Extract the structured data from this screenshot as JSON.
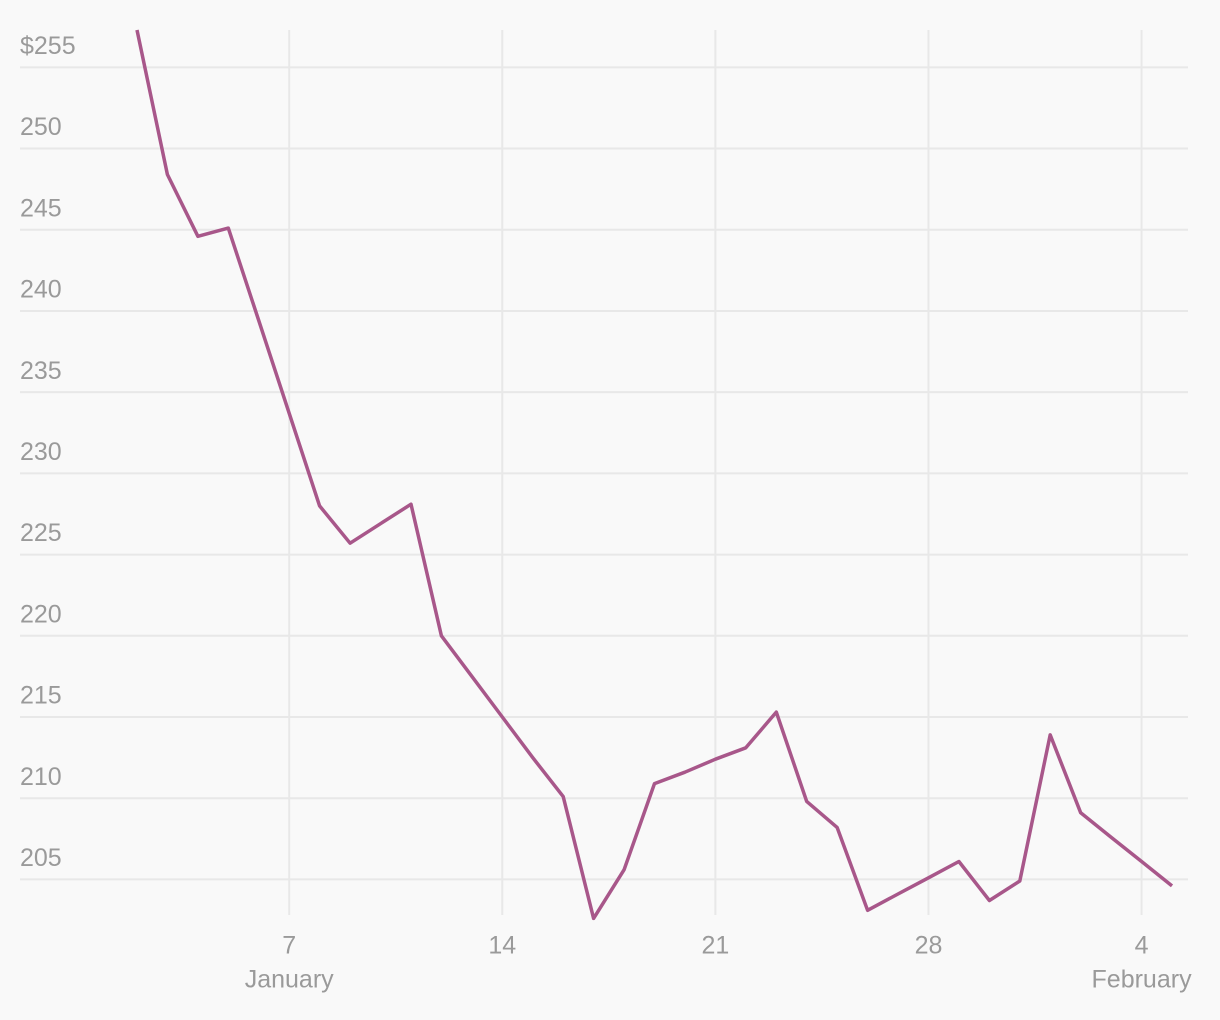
{
  "chart_data": {
    "type": "line",
    "categories": [
      "January 2",
      "January 3",
      "January 4",
      "January 5",
      "January 6",
      "January 7",
      "January 8",
      "January 9",
      "January 10",
      "January 11",
      "January 12",
      "January 13",
      "January 14",
      "January 15",
      "January 16",
      "January 17",
      "January 18",
      "January 19",
      "January 20",
      "January 21",
      "January 22",
      "January 23",
      "January 24",
      "January 25",
      "January 26",
      "January 27",
      "January 28",
      "January 29",
      "January 30",
      "January 31",
      "February 1",
      "February 2",
      "February 3",
      "February 4",
      "February 5"
    ],
    "values": [
      257.3,
      248.4,
      244.6,
      245.1,
      239.4,
      233.7,
      228.0,
      225.7,
      226.9,
      228.1,
      220.0,
      217.5,
      215.0,
      212.5,
      210.1,
      202.6,
      205.6,
      210.9,
      211.6,
      212.4,
      213.1,
      215.3,
      209.8,
      208.2,
      203.1,
      204.1,
      205.1,
      206.1,
      203.7,
      204.9,
      213.9,
      209.1,
      207.6,
      206.1,
      204.6
    ],
    "color": "#a8578a",
    "ylim": [
      202.5,
      257.3
    ],
    "yticks": [
      205,
      210,
      215,
      220,
      225,
      230,
      235,
      240,
      245,
      250,
      {
        "value": 255,
        "label": "$255"
      }
    ],
    "xticks": [
      {
        "value": "January 7",
        "label": "7",
        "month": "January"
      },
      {
        "value": "January 14",
        "label": "14"
      },
      {
        "value": "January 21",
        "label": "21"
      },
      {
        "value": "January 28",
        "label": "28"
      },
      {
        "value": "February 4",
        "label": "4",
        "month": "February"
      }
    ],
    "grid": true
  }
}
